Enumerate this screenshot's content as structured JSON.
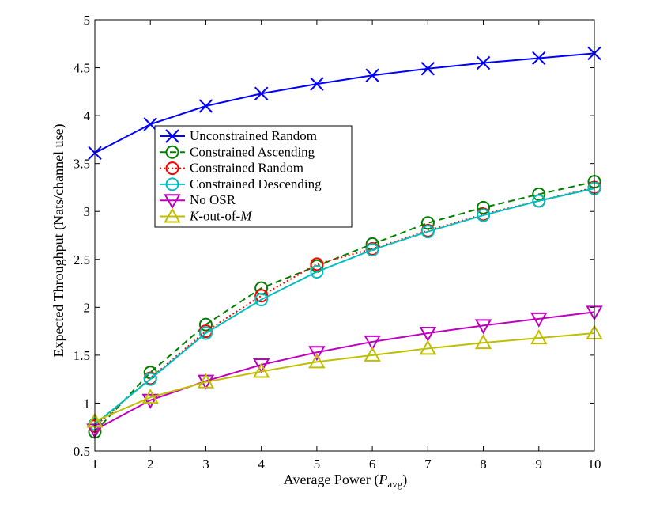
{
  "chart_data": {
    "type": "line",
    "title": "",
    "xlabel": "Average Power (",
    "xlabel_symbol": "P",
    "xlabel_subscript": "avg",
    "xlabel_close": ")",
    "ylabel": "Expected Throughput (Nats/channel use)",
    "xlim": [
      1,
      10
    ],
    "ylim": [
      0.5,
      5
    ],
    "x_ticks": [
      "1",
      "2",
      "3",
      "4",
      "5",
      "6",
      "7",
      "8",
      "9",
      "10"
    ],
    "y_ticks": [
      "0.5",
      "1",
      "1.5",
      "2",
      "2.5",
      "3",
      "3.5",
      "4",
      "4.5",
      "5"
    ],
    "x": [
      1,
      2,
      3,
      4,
      5,
      6,
      7,
      8,
      9,
      10
    ],
    "legend_position": "center-left",
    "series": [
      {
        "name": "Unconstrained Random",
        "color": "#0000ff",
        "dash": "solid",
        "marker": "x",
        "values": [
          3.61,
          3.91,
          4.1,
          4.23,
          4.33,
          4.42,
          4.49,
          4.55,
          4.6,
          4.65
        ]
      },
      {
        "name": "Constrained Ascending",
        "color": "#007f00",
        "dash": "dashed",
        "marker": "circle",
        "values": [
          0.7,
          1.32,
          1.82,
          2.2,
          2.43,
          2.66,
          2.88,
          3.04,
          3.18,
          3.31
        ]
      },
      {
        "name": "Constrained Random",
        "color": "#ff0000",
        "dash": "dotted",
        "marker": "circle",
        "values": [
          0.76,
          1.26,
          1.75,
          2.12,
          2.45,
          2.61,
          2.8,
          2.97,
          3.11,
          3.25
        ]
      },
      {
        "name": "Constrained Descending",
        "color": "#00bfbf",
        "dash": "solid",
        "marker": "circle",
        "values": [
          0.78,
          1.25,
          1.73,
          2.08,
          2.37,
          2.6,
          2.79,
          2.96,
          3.11,
          3.24
        ]
      },
      {
        "name": "No OSR",
        "color": "#bf00bf",
        "dash": "solid",
        "marker": "triangle-down",
        "values": [
          0.72,
          1.03,
          1.23,
          1.4,
          1.53,
          1.64,
          1.73,
          1.81,
          1.88,
          1.95
        ]
      },
      {
        "name_prefix": "K",
        "name": "-out-of-",
        "name_suffix": "M",
        "color": "#bfbf00",
        "dash": "solid",
        "marker": "triangle-up",
        "values": [
          0.81,
          1.06,
          1.22,
          1.33,
          1.43,
          1.5,
          1.57,
          1.63,
          1.68,
          1.73
        ]
      }
    ]
  }
}
